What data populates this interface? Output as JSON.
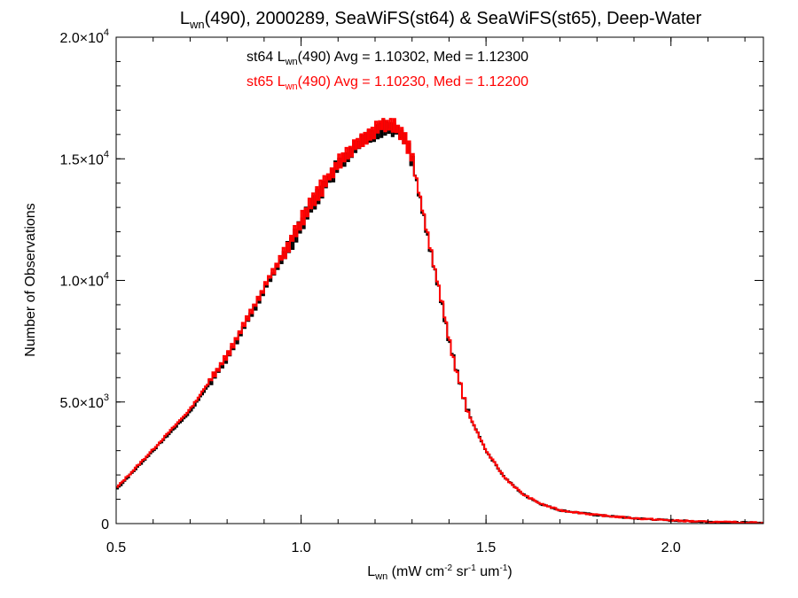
{
  "chart_data": {
    "type": "line",
    "title": {
      "prefix": "L",
      "sub": "wn",
      "rest": "(490), 2000289, SeaWiFS(st64) & SeaWiFS(st65), Deep-Water"
    },
    "xlabel": {
      "prefix": "L",
      "sub": "wn",
      "u1": " (mW cm",
      "s1": "-2",
      "u2": " sr",
      "s2": "-1",
      "u3": " um",
      "s3": "-1",
      "u4": ")"
    },
    "ylabel": "Number of Observations",
    "xlim": [
      0.5,
      2.25
    ],
    "ylim": [
      0,
      20000
    ],
    "x_ticks": [
      {
        "value": 0.5,
        "label": "0.5"
      },
      {
        "value": 1.0,
        "label": "1.0"
      },
      {
        "value": 1.5,
        "label": "1.5"
      },
      {
        "value": 2.0,
        "label": "2.0"
      }
    ],
    "y_ticks": [
      {
        "value": 0,
        "mant": "0",
        "exp": ""
      },
      {
        "value": 5000,
        "mant": "5.0×10",
        "exp": "3"
      },
      {
        "value": 10000,
        "mant": "1.0×10",
        "exp": "4"
      },
      {
        "value": 15000,
        "mant": "1.5×10",
        "exp": "4"
      },
      {
        "value": 20000,
        "mant": "2.0×10",
        "exp": "4"
      }
    ],
    "annotations": [
      {
        "series": "st64",
        "color": "#000000",
        "prefix": "st64 L",
        "sub": "wn",
        "rest": "(490) Avg = 1.10302, Med = 1.12300"
      },
      {
        "series": "st65",
        "color": "#ff0000",
        "prefix": "st65 L",
        "sub": "wn",
        "rest": "(490) Avg = 1.10230, Med = 1.12200"
      }
    ],
    "series": [
      {
        "name": "st64",
        "color": "#000000",
        "x": [
          0.5,
          0.6,
          0.7,
          0.8,
          0.9,
          1.0,
          1.05,
          1.1,
          1.15,
          1.2,
          1.22,
          1.25,
          1.28,
          1.3,
          1.33,
          1.35,
          1.38,
          1.4,
          1.42,
          1.45,
          1.5,
          1.55,
          1.6,
          1.65,
          1.7,
          1.8,
          1.9,
          2.0,
          2.1,
          2.25
        ],
        "y": [
          1400,
          3000,
          4600,
          6800,
          9600,
          12300,
          13600,
          14700,
          15500,
          16100,
          16300,
          16300,
          15900,
          15000,
          12700,
          11200,
          9100,
          7500,
          6300,
          4600,
          3000,
          1900,
          1200,
          800,
          550,
          350,
          220,
          130,
          70,
          30
        ]
      },
      {
        "name": "st65",
        "color": "#ff0000",
        "x": [
          0.5,
          0.6,
          0.7,
          0.8,
          0.9,
          1.0,
          1.05,
          1.1,
          1.15,
          1.2,
          1.22,
          1.25,
          1.28,
          1.3,
          1.33,
          1.35,
          1.38,
          1.4,
          1.42,
          1.45,
          1.5,
          1.55,
          1.6,
          1.65,
          1.7,
          1.8,
          1.9,
          2.0,
          2.1,
          2.25
        ],
        "y": [
          1450,
          3050,
          4700,
          6900,
          9700,
          12400,
          13700,
          14800,
          15600,
          16200,
          16400,
          16350,
          15950,
          15000,
          12750,
          11250,
          9150,
          7550,
          6300,
          4600,
          3000,
          1900,
          1200,
          800,
          550,
          350,
          220,
          130,
          70,
          30
        ]
      }
    ]
  }
}
